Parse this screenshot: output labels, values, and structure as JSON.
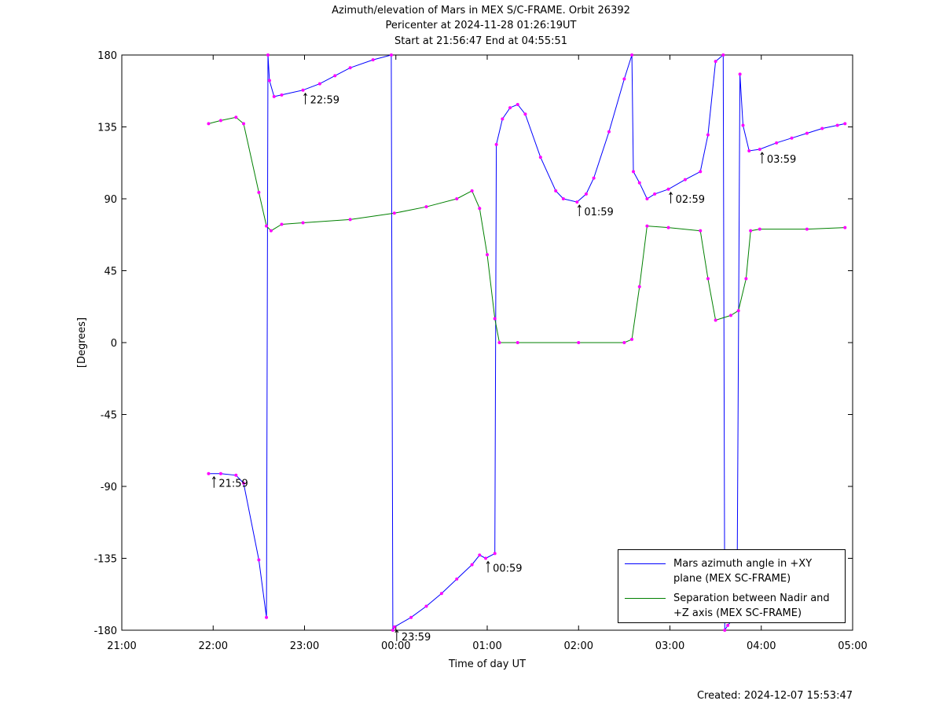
{
  "chart_data": {
    "type": "line",
    "title": [
      "Azimuth/elevation of Mars in MEX S/C-FRAME.  Orbit 26392",
      "Pericenter at 2024-11-28 01:26:19UT",
      "Start at 21:56:47 End at 04:55:51"
    ],
    "xlabel": "Time of day UT",
    "ylabel": "[Degrees]",
    "footer": "Created: 2024-12-07 15:53:47",
    "xlim": [
      "21:00",
      "05:00"
    ],
    "xticks": [
      "21:00",
      "22:00",
      "23:00",
      "00:00",
      "01:00",
      "02:00",
      "03:00",
      "04:00",
      "05:00"
    ],
    "ylim": [
      -180,
      180
    ],
    "yticks": [
      -180,
      -135,
      -90,
      -45,
      0,
      45,
      90,
      135,
      180
    ],
    "legend": "lower right",
    "series": [
      {
        "name": "Mars azimuth angle in +XY plane (MEX SC-FRAME)",
        "color": "#0000ff",
        "x": [
          "21:57",
          "22:05",
          "22:15",
          "22:20",
          "22:30",
          "22:35",
          "22:36",
          "22:37",
          "22:40",
          "22:45",
          "22:59",
          "23:10",
          "23:20",
          "23:30",
          "23:45",
          "23:57",
          "23:58",
          "23:59",
          "00:10",
          "00:20",
          "00:30",
          "00:40",
          "00:50",
          "00:55",
          "00:59",
          "01:05",
          "01:06",
          "01:10",
          "01:15",
          "01:20",
          "01:25",
          "01:35",
          "01:45",
          "01:50",
          "01:59",
          "02:05",
          "02:10",
          "02:20",
          "02:30",
          "02:35",
          "02:36",
          "02:40",
          "02:45",
          "02:50",
          "02:59",
          "03:10",
          "03:20",
          "03:25",
          "03:30",
          "03:35",
          "03:36",
          "03:38",
          "03:44",
          "03:46",
          "03:48",
          "03:52",
          "03:59",
          "04:10",
          "04:20",
          "04:30",
          "04:40",
          "04:50",
          "04:55"
        ],
        "values": [
          -82,
          -82,
          -83,
          -88,
          -136,
          -172,
          180,
          164,
          154,
          155,
          158,
          162,
          167,
          172,
          177,
          180,
          -180,
          -178,
          -172,
          -165,
          -157,
          -148,
          -139,
          -133,
          -135,
          -132,
          124,
          140,
          147,
          149,
          143,
          116,
          95,
          90,
          88,
          93,
          103,
          132,
          165,
          180,
          107,
          100,
          90,
          93,
          96,
          102,
          107,
          130,
          176,
          180,
          -180,
          -177,
          -170,
          168,
          136,
          120,
          121,
          125,
          128,
          131,
          134,
          136,
          137
        ]
      },
      {
        "name": "Separation between Nadir and +Z axis (MEX SC-FRAME)",
        "color": "#008000",
        "x": [
          "21:57",
          "22:05",
          "22:15",
          "22:20",
          "22:30",
          "22:35",
          "22:38",
          "22:45",
          "22:59",
          "23:30",
          "23:59",
          "00:20",
          "00:40",
          "00:50",
          "00:55",
          "01:00",
          "01:05",
          "01:08",
          "01:20",
          "02:00",
          "02:30",
          "02:35",
          "02:40",
          "02:45",
          "02:59",
          "03:20",
          "03:25",
          "03:30",
          "03:40",
          "03:45",
          "03:50",
          "03:53",
          "03:59",
          "04:30",
          "04:55"
        ],
        "values": [
          137,
          139,
          141,
          137,
          94,
          73,
          70,
          74,
          75,
          77,
          81,
          85,
          90,
          95,
          84,
          55,
          15,
          0,
          0,
          0,
          0,
          2,
          35,
          73,
          72,
          70,
          40,
          14,
          17,
          20,
          40,
          70,
          71,
          71,
          72
        ]
      }
    ],
    "annotations": [
      {
        "text": "21:59",
        "x": "21:59",
        "y": -82
      },
      {
        "text": "22:59",
        "x": "22:59",
        "y": 158
      },
      {
        "text": "23:59",
        "x": "23:59",
        "y": -178
      },
      {
        "text": "00:59",
        "x": "00:59",
        "y": -135
      },
      {
        "text": "01:59",
        "x": "01:59",
        "y": 88
      },
      {
        "text": "02:59",
        "x": "02:59",
        "y": 96
      },
      {
        "text": "03:59",
        "x": "03:59",
        "y": 121
      }
    ]
  }
}
